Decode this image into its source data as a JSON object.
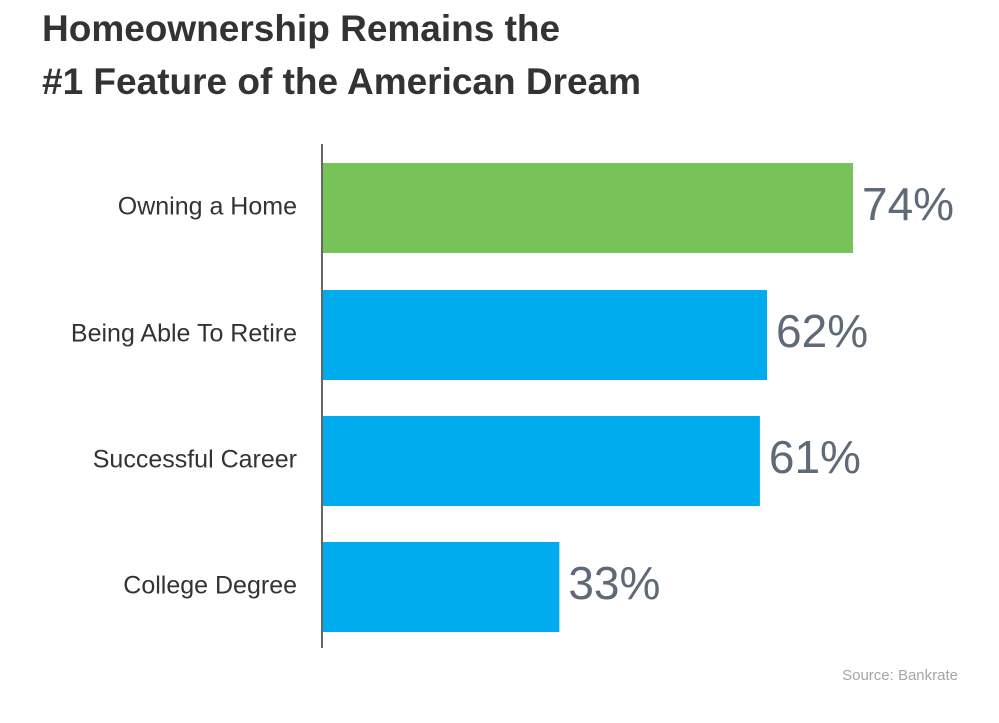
{
  "title": {
    "line1": "Homeownership Remains the",
    "line2": "#1 Feature of the American Dream"
  },
  "source": "Source: Bankrate",
  "colors": {
    "highlight": "#78c25a",
    "default": "#00aced",
    "value_label": "#5f6a78",
    "category_label": "#333333",
    "axis": "#333333"
  },
  "chart_data": {
    "type": "bar",
    "orientation": "horizontal",
    "categories": [
      "Owning a Home",
      "Being Able To Retire",
      "Successful Career",
      "College Degree"
    ],
    "values": [
      74,
      62,
      61,
      33
    ],
    "value_labels": [
      "74%",
      "62%",
      "61%",
      "33%"
    ],
    "highlight_index": 0,
    "unit": "%",
    "xlim": [
      0,
      100
    ],
    "grid": false,
    "legend": "none"
  }
}
